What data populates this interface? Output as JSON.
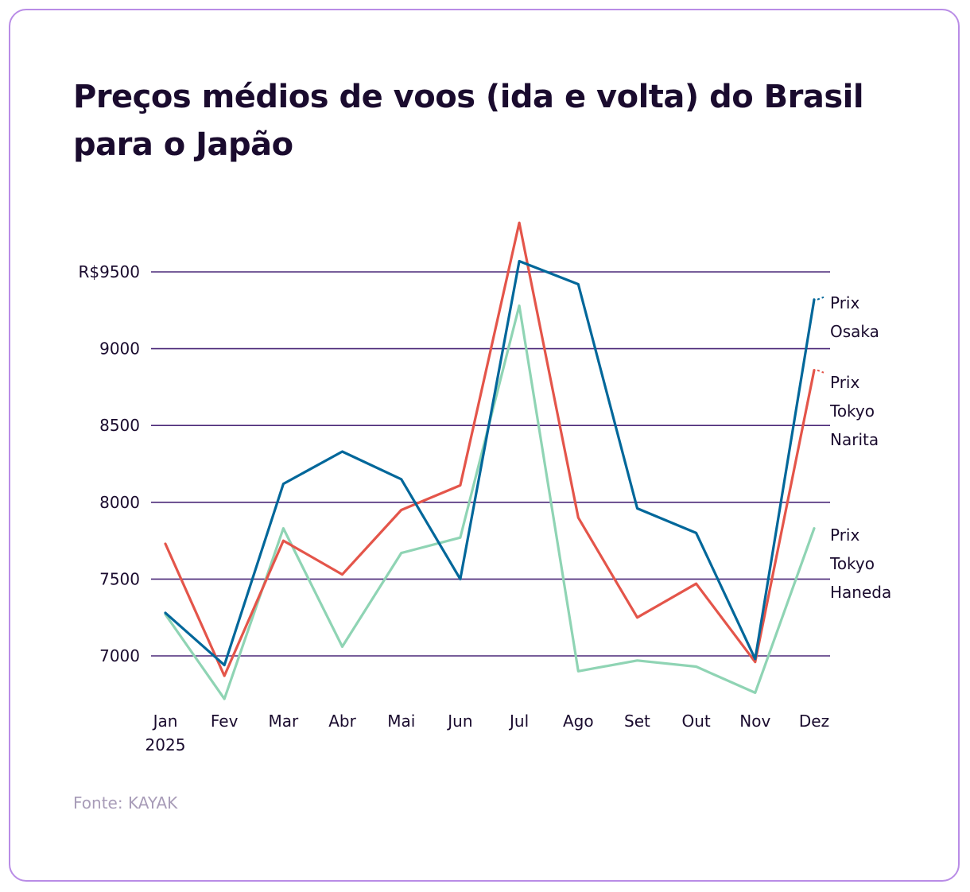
{
  "chart_data": {
    "type": "line",
    "title": "Preços médios de voos (ida e volta) do Brasil para o Japão",
    "xlabel": "",
    "ylabel": "",
    "categories": [
      "Jan",
      "Fev",
      "Mar",
      "Abr",
      "Mai",
      "Jun",
      "Jul",
      "Ago",
      "Set",
      "Out",
      "Nov",
      "Dez"
    ],
    "x_sublabel": "2025",
    "y_ticks": [
      {
        "value": 9500,
        "label": "R$9500"
      },
      {
        "value": 9000,
        "label": "9000"
      },
      {
        "value": 8500,
        "label": "8500"
      },
      {
        "value": 8000,
        "label": "8000"
      },
      {
        "value": 7500,
        "label": "7500"
      },
      {
        "value": 7000,
        "label": "7000"
      }
    ],
    "ylim": [
      6700,
      9900
    ],
    "grid": true,
    "series": [
      {
        "name": "Prix Osaka",
        "label_lines": [
          "Prix",
          "Osaka"
        ],
        "color": "#00679a",
        "values": [
          7280,
          6940,
          8120,
          8330,
          8150,
          7500,
          9570,
          9420,
          7960,
          7800,
          6980,
          9320
        ]
      },
      {
        "name": "Prix Tokyo Narita",
        "label_lines": [
          "Prix",
          "Tokyo",
          "Narita"
        ],
        "color": "#e4554a",
        "values": [
          7730,
          6870,
          7750,
          7530,
          7950,
          8110,
          9820,
          7900,
          7250,
          7470,
          6960,
          8860
        ]
      },
      {
        "name": "Prix Tokyo Haneda",
        "label_lines": [
          "Prix",
          "Tokyo",
          "Haneda"
        ],
        "color": "#8fd4b4",
        "values": [
          7270,
          6720,
          7830,
          7060,
          7670,
          7770,
          9280,
          6900,
          6970,
          6930,
          6760,
          7830
        ]
      }
    ]
  },
  "source": "Fonte: KAYAK",
  "colors": {
    "grid": "#4a2878",
    "text": "#1a0b2e",
    "border": "#b98ce6",
    "source": "#a89cb8"
  }
}
